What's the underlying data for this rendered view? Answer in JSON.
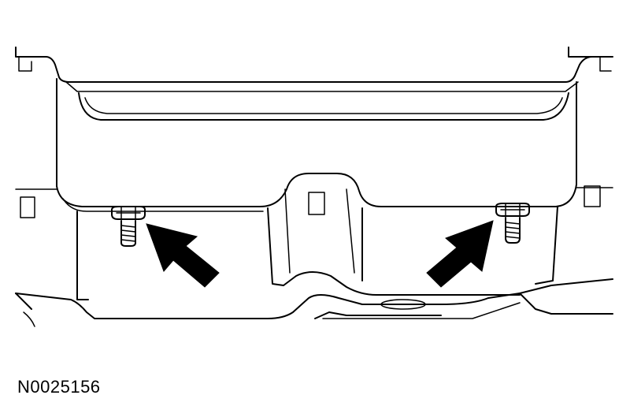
{
  "figure": {
    "id": "N0025156",
    "fasteners": [
      {
        "label": "",
        "icon": "bolt-icon"
      },
      {
        "label": "",
        "icon": "bolt-icon"
      }
    ],
    "callouts": [
      {
        "icon": "arrow-icon",
        "points_to": "left-bolt"
      },
      {
        "icon": "arrow-icon",
        "points_to": "right-bolt"
      }
    ],
    "colors": {
      "line": "#000000",
      "fill": "#000000",
      "background": "#ffffff"
    }
  }
}
